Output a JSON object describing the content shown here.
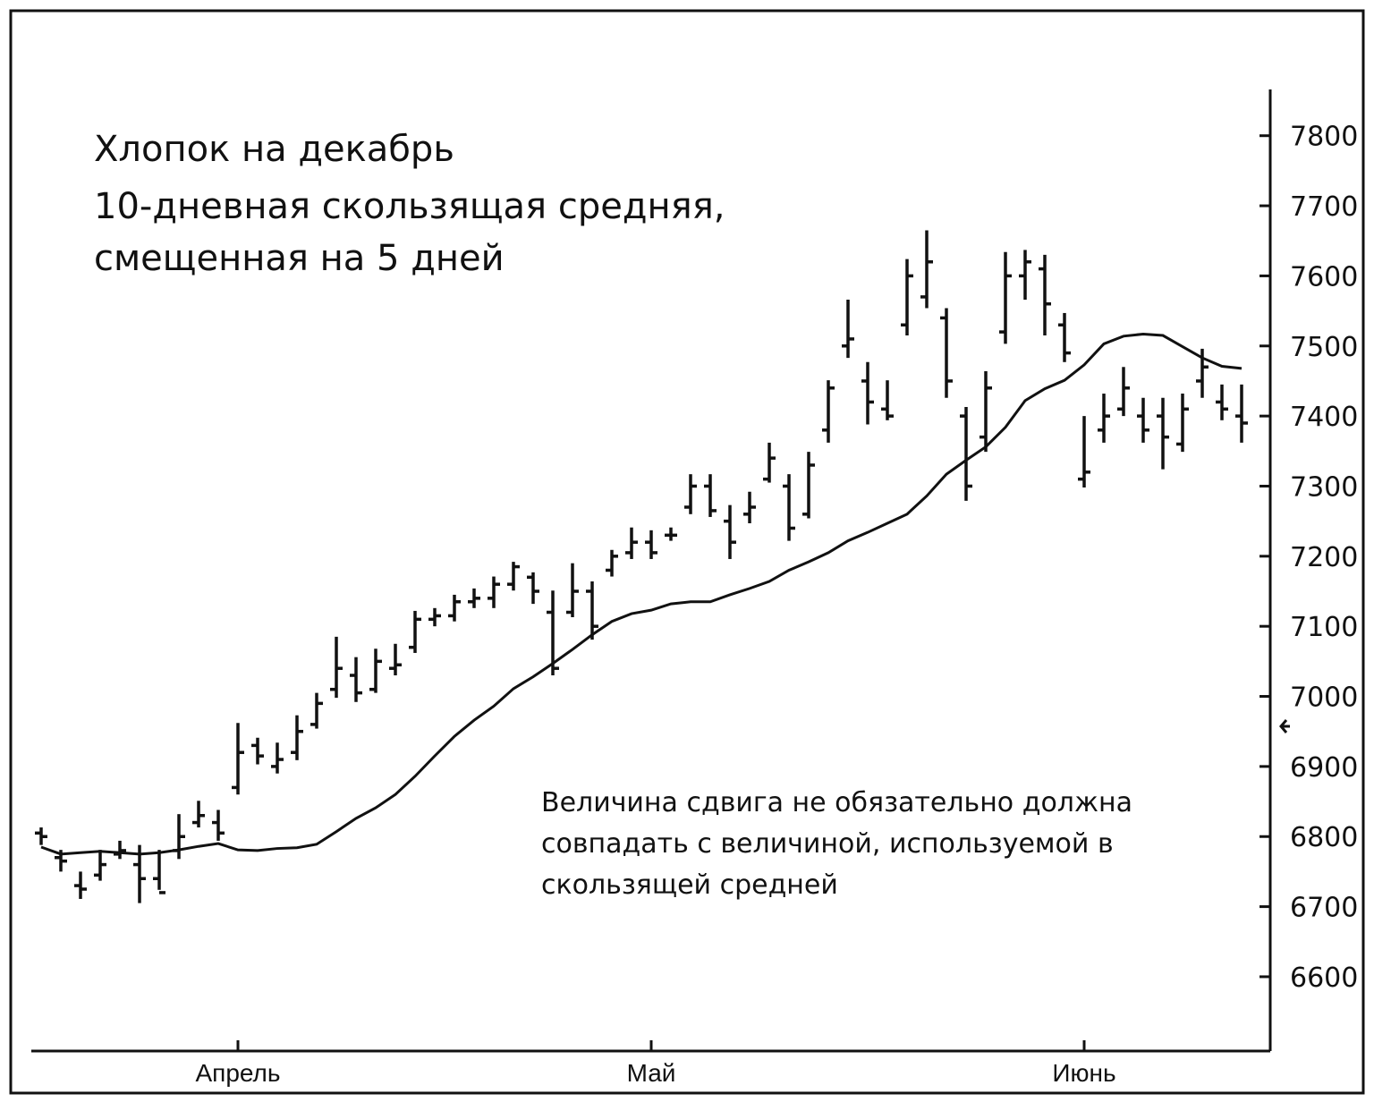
{
  "chart_data": {
    "type": "ohlc",
    "title": [
      "Хлопок на декабрь",
      "10-дневная скользящая средняя,",
      "смещенная на 5 дней"
    ],
    "annotation": [
      "Величина сдвига не обязательно должна",
      "совпадать с величиной, используемой в",
      "скользящей средней"
    ],
    "categories": [
      null,
      null,
      null,
      null,
      null,
      null,
      null,
      null,
      null,
      null,
      "Апрель",
      null,
      null,
      null,
      null,
      null,
      null,
      null,
      null,
      null,
      null,
      null,
      null,
      null,
      null,
      null,
      null,
      null,
      null,
      null,
      null,
      "Май",
      null,
      null,
      null,
      null,
      null,
      null,
      null,
      null,
      null,
      null,
      null,
      null,
      null,
      null,
      null,
      null,
      null,
      null,
      null,
      null,
      null,
      "Июнь",
      null,
      null,
      null,
      null,
      null,
      null,
      null,
      null
    ],
    "open": [
      6805,
      6770,
      6730,
      6745,
      6775,
      6760,
      6740,
      6780,
      6820,
      6820,
      6870,
      6930,
      6900,
      6920,
      6960,
      7010,
      7030,
      7010,
      7040,
      7070,
      7110,
      7115,
      7135,
      7140,
      7160,
      7170,
      7120,
      7120,
      7150,
      7180,
      7205,
      7220,
      7230,
      7270,
      7300,
      7250,
      7260,
      7310,
      7300,
      7260,
      7380,
      7500,
      7450,
      7410,
      7530,
      7570,
      7540,
      7400,
      7370,
      7520,
      7600,
      7610,
      7530,
      7310,
      7380,
      7410,
      7400,
      7400,
      7360,
      7450,
      7420,
      7400
    ],
    "high": [
      6813,
      6781,
      6750,
      6781,
      6794,
      6788,
      6781,
      6832,
      6851,
      6838,
      6962,
      6941,
      6934,
      6973,
      7005,
      7085,
      7056,
      7068,
      7075,
      7122,
      7126,
      7145,
      7154,
      7171,
      7192,
      7177,
      7151,
      7190,
      7164,
      7209,
      7241,
      7237,
      7241,
      7317,
      7317,
      7273,
      7292,
      7362,
      7317,
      7349,
      7451,
      7566,
      7477,
      7451,
      7624,
      7665,
      7554,
      7413,
      7464,
      7634,
      7637,
      7630,
      7547,
      7400,
      7432,
      7470,
      7426,
      7426,
      7432,
      7496,
      7445,
      7445
    ],
    "low": [
      6788,
      6750,
      6711,
      6737,
      6768,
      6705,
      6724,
      6768,
      6813,
      6794,
      6860,
      6903,
      6890,
      6909,
      6954,
      6998,
      6992,
      7005,
      7030,
      7062,
      7100,
      7107,
      7126,
      7126,
      7151,
      7132,
      7030,
      7113,
      7081,
      7171,
      7196,
      7196,
      7222,
      7260,
      7256,
      7196,
      7247,
      7305,
      7222,
      7254,
      7362,
      7483,
      7388,
      7394,
      7515,
      7554,
      7426,
      7279,
      7349,
      7503,
      7566,
      7515,
      7477,
      7298,
      7362,
      7400,
      7362,
      7324,
      7349,
      7426,
      7394,
      7362
    ],
    "close": [
      6800,
      6765,
      6725,
      6760,
      6780,
      6740,
      6720,
      6800,
      6830,
      6805,
      6920,
      6915,
      6910,
      6950,
      6990,
      7040,
      7005,
      7050,
      7045,
      7110,
      7115,
      7135,
      7140,
      7160,
      7185,
      7150,
      7040,
      7150,
      7100,
      7200,
      7220,
      7205,
      7230,
      7300,
      7265,
      7220,
      7270,
      7340,
      7240,
      7330,
      7440,
      7510,
      7420,
      7400,
      7600,
      7620,
      7450,
      7300,
      7440,
      7600,
      7620,
      7560,
      7490,
      7320,
      7400,
      7440,
      7380,
      7370,
      7410,
      7470,
      7410,
      7390
    ],
    "moving_average": {
      "values": [
        6785,
        6775,
        6777,
        6779,
        6777,
        6775,
        6777,
        6781,
        6786,
        6790,
        6781,
        6780,
        6783,
        6784,
        6789,
        6807,
        6826,
        6841,
        6860,
        6886,
        6915,
        6943,
        6966,
        6986,
        7011,
        7028,
        7047,
        7067,
        7088,
        7107,
        7118,
        7123,
        7132,
        7135,
        7135,
        7145,
        7154,
        7164,
        7180,
        7192,
        7205,
        7222,
        7234,
        7247,
        7260,
        7286,
        7317,
        7337,
        7356,
        7384,
        7422,
        7439,
        7451,
        7473,
        7503,
        7514,
        7517,
        7515,
        7499,
        7483,
        7471,
        7468
      ]
    },
    "ylim": [
      6494,
      7866
    ],
    "yticks": [
      6600,
      6700,
      6800,
      6900,
      7000,
      7100,
      7200,
      7300,
      7400,
      7500,
      7600,
      7700,
      7800
    ]
  }
}
